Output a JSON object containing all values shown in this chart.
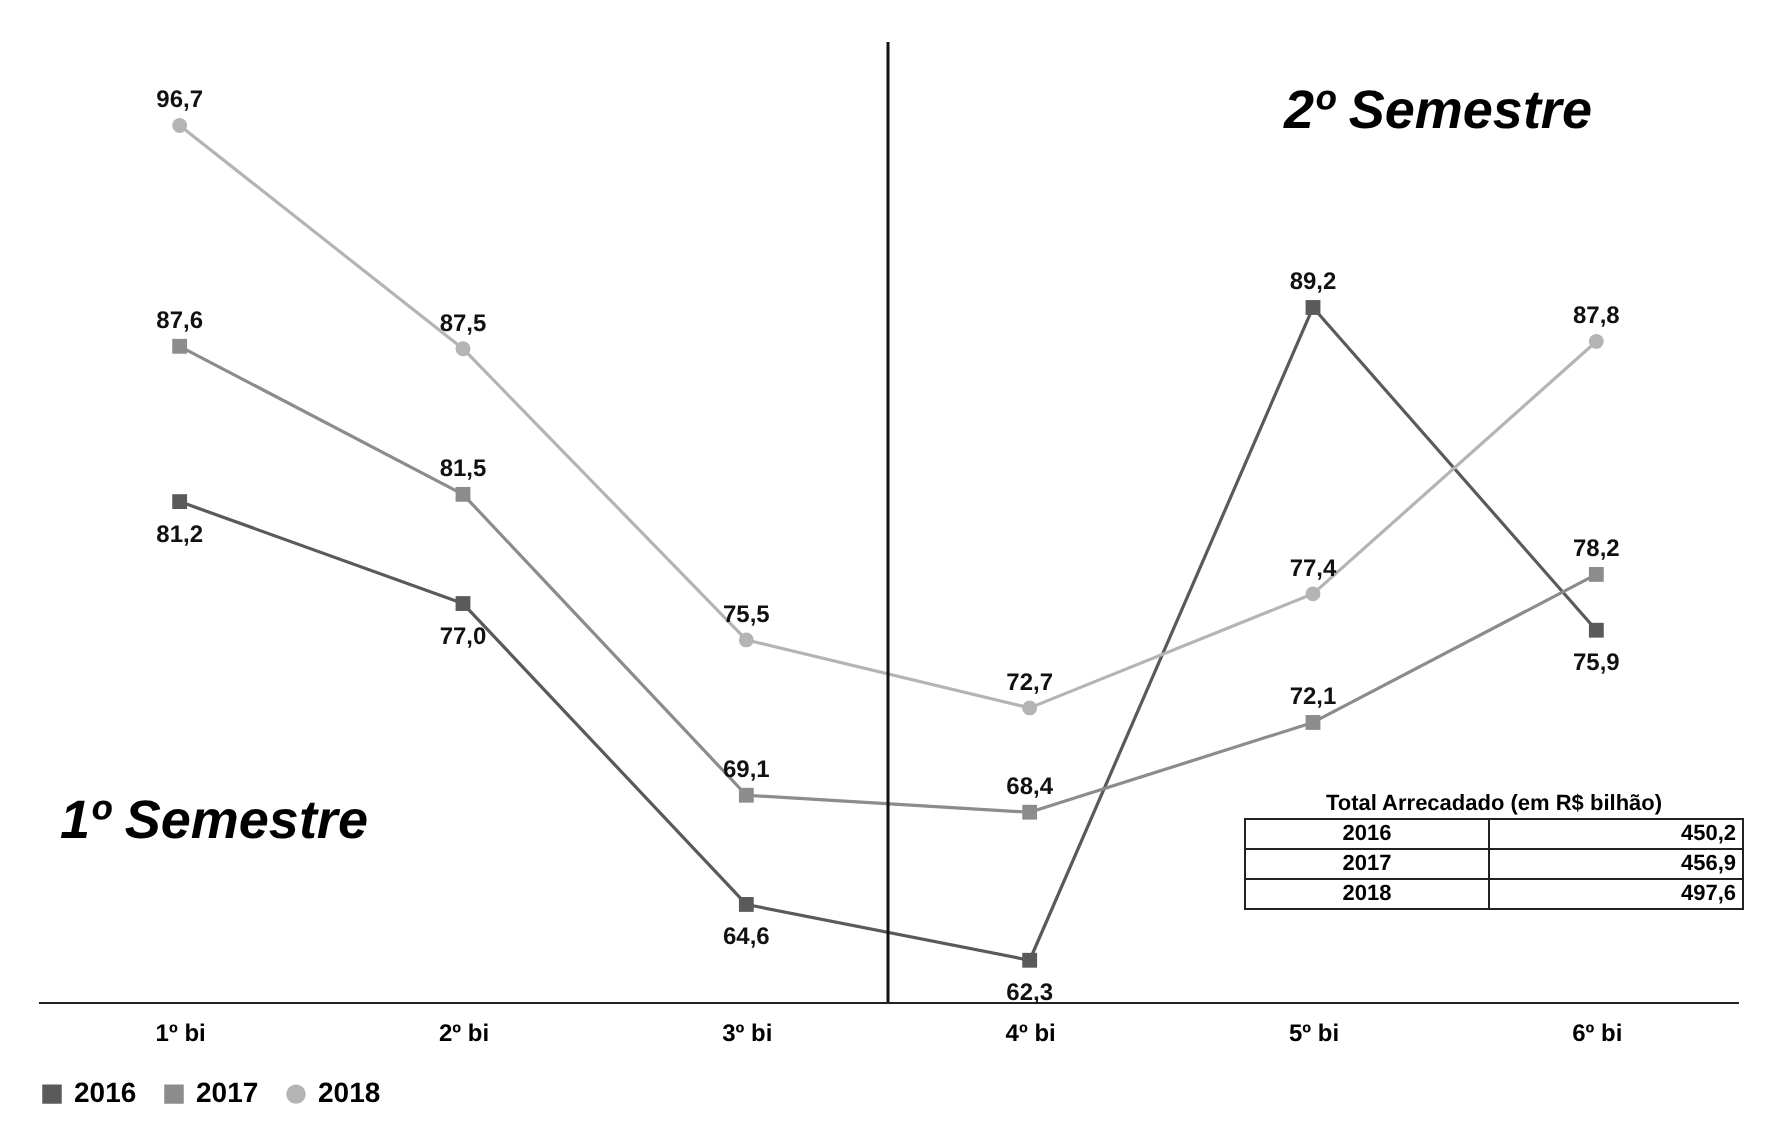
{
  "chart_data": {
    "type": "line",
    "categories": [
      "1º bi",
      "2º bi",
      "3º bi",
      "4º bi",
      "5º bi",
      "6º bi"
    ],
    "series": [
      {
        "name": "2016",
        "color": "#5a5a5a",
        "marker": "square",
        "values": [
          81.2,
          77.0,
          64.6,
          62.3,
          89.2,
          75.9
        ],
        "value_labels": [
          "81,2",
          "77,0",
          "64,6",
          "62,3",
          "89,2",
          "75,9"
        ]
      },
      {
        "name": "2017",
        "color": "#8c8c8c",
        "marker": "square",
        "values": [
          87.6,
          81.5,
          69.1,
          68.4,
          72.1,
          78.2
        ],
        "value_labels": [
          "87,6",
          "81,5",
          "69,1",
          "68,4",
          "72,1",
          "78,2"
        ]
      },
      {
        "name": "2018",
        "color": "#b4b4b4",
        "marker": "circle",
        "values": [
          96.7,
          87.5,
          75.5,
          72.7,
          77.4,
          87.8
        ],
        "value_labels": [
          "96,7",
          "87,5",
          "75,5",
          "72,7",
          "77,4",
          "87,8"
        ]
      }
    ],
    "legend": "bottom",
    "line_style": "solid",
    "annotations": [
      "1º Semestre",
      "2º Semestre",
      "Total Arrecadado (em R$ bilhão)",
      "2016",
      "450,2",
      "2017",
      "456,9",
      "2018",
      "497,6"
    ]
  }
}
